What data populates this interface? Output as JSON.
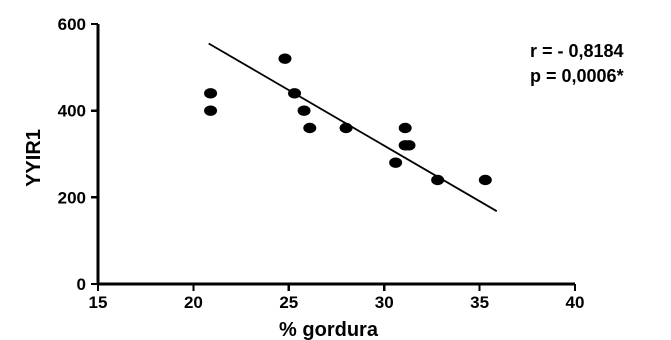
{
  "chart_data": {
    "type": "scatter",
    "title": "",
    "xlabel": "% gordura",
    "ylabel": "YYIR1",
    "xlim": [
      15,
      40
    ],
    "ylim": [
      0,
      600
    ],
    "x_ticks": [
      15,
      20,
      25,
      30,
      35,
      40
    ],
    "y_ticks": [
      0,
      200,
      400,
      600
    ],
    "grid": false,
    "legend": "none",
    "series": [
      {
        "points": [
          {
            "x": 20.9,
            "y": 440
          },
          {
            "x": 20.9,
            "y": 400
          },
          {
            "x": 24.8,
            "y": 520
          },
          {
            "x": 25.3,
            "y": 440
          },
          {
            "x": 25.8,
            "y": 400
          },
          {
            "x": 26.1,
            "y": 360
          },
          {
            "x": 28.0,
            "y": 360
          },
          {
            "x": 30.6,
            "y": 280
          },
          {
            "x": 31.1,
            "y": 360
          },
          {
            "x": 31.1,
            "y": 320
          },
          {
            "x": 31.3,
            "y": 320
          },
          {
            "x": 32.8,
            "y": 240
          },
          {
            "x": 35.3,
            "y": 240
          }
        ]
      }
    ],
    "regression_line": {
      "x": [
        20.8,
        35.9
      ],
      "y": [
        555,
        168
      ]
    },
    "annotations": {
      "r_text": "r = - 0,8184",
      "p_text": "p = 0,0006*"
    },
    "colors": {
      "marks": "#000000",
      "background": "#ffffff"
    }
  }
}
